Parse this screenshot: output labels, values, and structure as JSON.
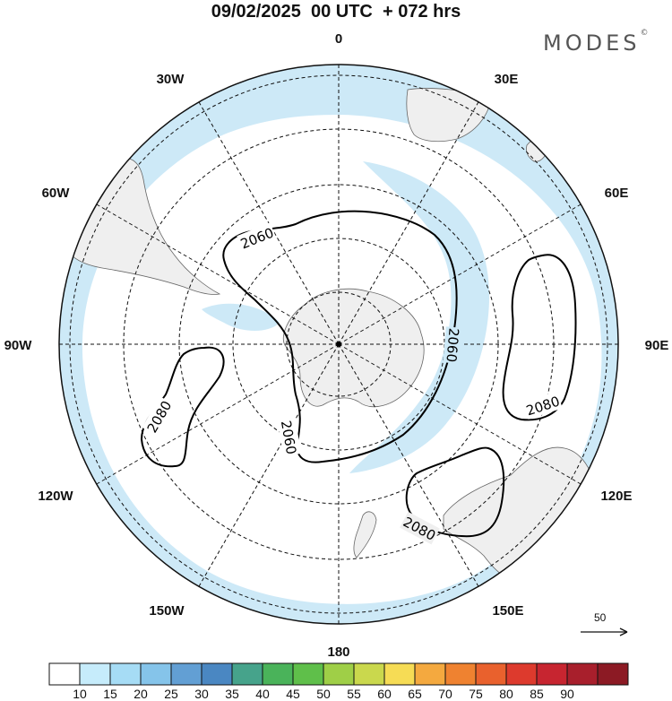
{
  "title": "09/02/2025  00 UTC  + 072 hrs",
  "brand": {
    "name": "MODES",
    "mark": "©"
  },
  "map": {
    "projection": "south-polar-stereographic",
    "center": "South Pole",
    "longitude_labels": [
      {
        "text": "0",
        "lon": 0
      },
      {
        "text": "30E",
        "lon": 30
      },
      {
        "text": "60E",
        "lon": 60
      },
      {
        "text": "90E",
        "lon": 90
      },
      {
        "text": "120E",
        "lon": 120
      },
      {
        "text": "150E",
        "lon": 150
      },
      {
        "text": "180",
        "lon": 180
      },
      {
        "text": "150W",
        "lon": -150
      },
      {
        "text": "120W",
        "lon": -120
      },
      {
        "text": "90W",
        "lon": -90
      },
      {
        "text": "60W",
        "lon": -60
      },
      {
        "text": "30W",
        "lon": -30
      }
    ],
    "contour_labels": [
      "2060",
      "2060",
      "2060",
      "2080",
      "2080",
      "2080"
    ],
    "jet_shading_color": "#cde9f7",
    "land_color": "#efefef"
  },
  "vector_scale": {
    "label": "50"
  },
  "colorbar": {
    "ticks": [
      "10",
      "15",
      "20",
      "25",
      "30",
      "35",
      "40",
      "45",
      "50",
      "55",
      "60",
      "65",
      "70",
      "75",
      "80",
      "85",
      "90"
    ],
    "colors": [
      "#ffffff",
      "#c6ecfb",
      "#a6dcf5",
      "#85c4ea",
      "#629fd4",
      "#4a87c2",
      "#46a38b",
      "#4ab35a",
      "#5fbf4a",
      "#9fcf47",
      "#cad84d",
      "#f6dc55",
      "#f4a93f",
      "#ef8230",
      "#e9612d",
      "#dd3a2d",
      "#c72530",
      "#a81f2c",
      "#8c1a24"
    ]
  }
}
